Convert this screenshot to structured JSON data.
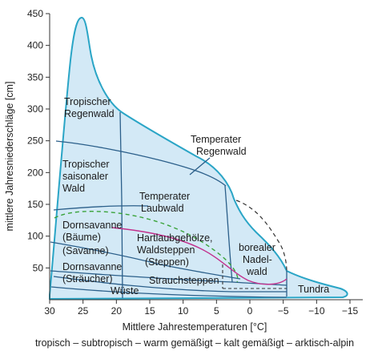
{
  "axes": {
    "x_title": "Mittlere Jahrestemperaturen [°C]",
    "y_title": "mittlere Jahresniederschläge [cm]",
    "x_ticks": [
      30,
      25,
      20,
      15,
      10,
      5,
      0,
      -5,
      -10,
      -15
    ],
    "x_tick_labels": [
      "30",
      "25",
      "20",
      "15",
      "10",
      "5",
      "0",
      "−5",
      "−10",
      "−15"
    ],
    "y_ticks": [
      50,
      100,
      150,
      200,
      250,
      300,
      350,
      400,
      450
    ],
    "y_tick_labels": [
      "50",
      "100",
      "150",
      "200",
      "250",
      "300",
      "350",
      "400",
      "450"
    ],
    "x_range": [
      30,
      -17
    ],
    "y_range": [
      0,
      450
    ]
  },
  "caption": "tropisch – subtropisch – warm gemäßigt – kalt gemäßigt – arktisch-alpin",
  "biomes": {
    "tropischer_regenwald": [
      "Tropischer",
      "Regenwald"
    ],
    "temperater_regenwald": [
      "Temperater",
      "Regenwald"
    ],
    "tropischer_saisonaler_wald": [
      "Tropischer",
      "saisonaler",
      "Wald"
    ],
    "temperater_laubwald": [
      "Temperater",
      "Laubwald"
    ],
    "dornsavanne_baeume": [
      "Dornsavanne",
      "(Bäume)"
    ],
    "savanne": "(Savanne)",
    "hartlaubgehoelze": [
      "Hartlaubgehölze,",
      "Waldsteppen",
      "(Steppen)"
    ],
    "borealer_nadelwald": [
      "borealer",
      "Nadel-",
      "wald"
    ],
    "dornsavanne_straeucher": [
      "Dornsavanne",
      "(Sträucher)"
    ],
    "strauchsteppen": "Strauchsteppen",
    "wueste": "Wüste",
    "tundra": "Tundra"
  },
  "colors": {
    "fill": "#d3e9f6",
    "outline": "#2aa5c6",
    "boundary": "#2b5f8a",
    "dashed": "#333333",
    "green_dashed": "#3aa33a",
    "magenta": "#c2308c",
    "axis": "#333333"
  }
}
